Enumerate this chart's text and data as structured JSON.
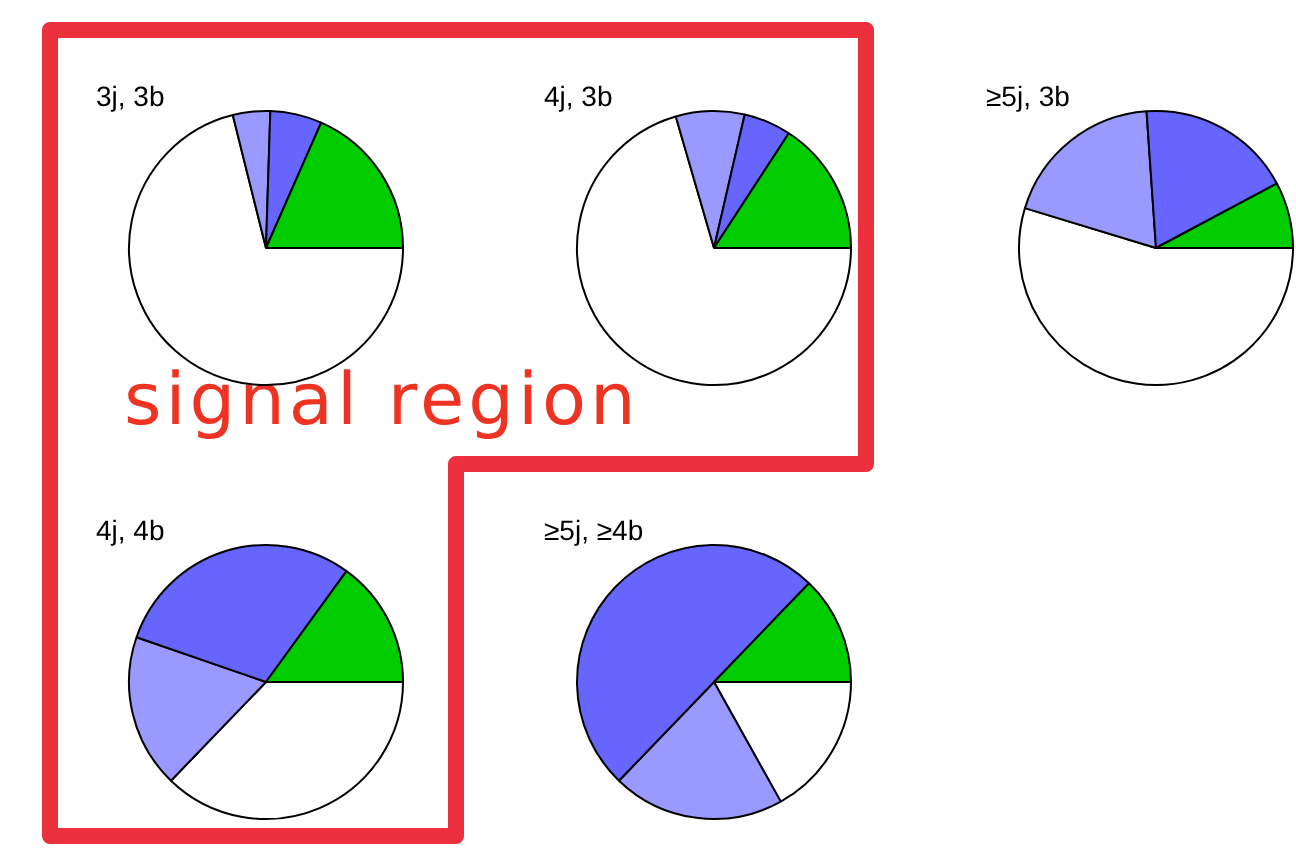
{
  "chart_data": [
    {
      "type": "pie",
      "title": "3j, 3b",
      "categories": [
        null,
        null,
        null,
        null
      ],
      "values": [
        71.1,
        4.4,
        6.1,
        18.4
      ],
      "colors": [
        "#ffffff",
        "#9999ff",
        "#6666ff",
        "#00cc00"
      ],
      "annotations": [
        "signal region"
      ]
    },
    {
      "type": "pie",
      "title": "4j, 3b",
      "categories": [
        null,
        null,
        null,
        null
      ],
      "values": [
        70.5,
        8.1,
        5.6,
        15.8
      ],
      "colors": [
        "#ffffff",
        "#9999ff",
        "#6666ff",
        "#00cc00"
      ]
    },
    {
      "type": "pie",
      "title": "≥5j, 3b",
      "categories": [
        null,
        null,
        null,
        null
      ],
      "values": [
        54.7,
        19.2,
        18.3,
        7.8
      ],
      "colors": [
        "#ffffff",
        "#9999ff",
        "#6666ff",
        "#00cc00"
      ]
    },
    {
      "type": "pie",
      "title": "4j, 4b",
      "categories": [
        null,
        null,
        null,
        null
      ],
      "values": [
        37.2,
        18.1,
        29.7,
        15
      ],
      "colors": [
        "#ffffff",
        "#9999ff",
        "#6666ff",
        "#00cc00"
      ]
    },
    {
      "type": "pie",
      "title": "≥5j, ≥4b",
      "categories": [
        null,
        null,
        null,
        null
      ],
      "values": [
        16.9,
        20.3,
        50,
        12.8
      ],
      "colors": [
        "#ffffff",
        "#9999ff",
        "#6666ff",
        "#00cc00"
      ]
    }
  ]
}
